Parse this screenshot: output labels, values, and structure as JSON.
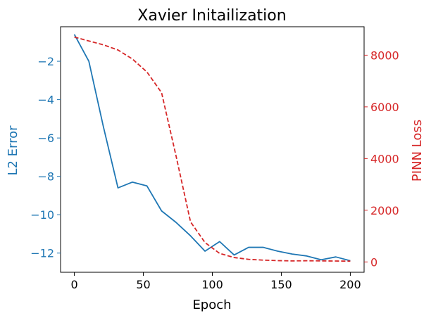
{
  "chart_data": {
    "type": "line",
    "title": "Xavier Initailization",
    "xlabel": "Epoch",
    "ylabel_left": "L2 Error",
    "ylabel_right": "PINN Loss",
    "xlim": [
      -10,
      210
    ],
    "ylim_left": [
      -13.0,
      -0.2
    ],
    "ylim_right": [
      -400,
      9100
    ],
    "x_ticks": [
      0,
      50,
      100,
      150,
      200
    ],
    "y_left_ticks": [
      -12,
      -10,
      -8,
      -6,
      -4,
      -2
    ],
    "y_right_ticks": [
      0,
      2000,
      4000,
      6000,
      8000
    ],
    "grid": false,
    "colors": {
      "left_axis": "#1f77b4",
      "right_axis": "#d62728"
    },
    "series": [
      {
        "axis": "left",
        "style": "solid",
        "x": [
          0,
          10.5,
          21,
          31.6,
          42.1,
          52.6,
          63.2,
          73.7,
          84.2,
          94.7,
          105.3,
          115.8,
          126.3,
          136.8,
          147.4,
          157.9,
          168.4,
          178.9,
          189.5,
          200
        ],
        "values": [
          -0.6,
          -2.0,
          -5.4,
          -8.6,
          -8.3,
          -8.5,
          -9.8,
          -10.4,
          -11.1,
          -11.9,
          -11.4,
          -12.1,
          -11.7,
          -11.7,
          -11.9,
          -12.05,
          -12.15,
          -12.35,
          -12.2,
          -12.4
        ]
      },
      {
        "axis": "right",
        "style": "dashed",
        "x": [
          0,
          10.5,
          21,
          31.6,
          42.1,
          52.6,
          63.2,
          73.7,
          84.2,
          94.7,
          105.3,
          115.8,
          126.3,
          136.8,
          147.4,
          157.9,
          168.4,
          178.9,
          189.5,
          200
        ],
        "values": [
          8700,
          8550,
          8400,
          8200,
          7850,
          7350,
          6550,
          4100,
          1550,
          750,
          330,
          170,
          100,
          70,
          50,
          40,
          45,
          40,
          35,
          30
        ]
      }
    ]
  }
}
